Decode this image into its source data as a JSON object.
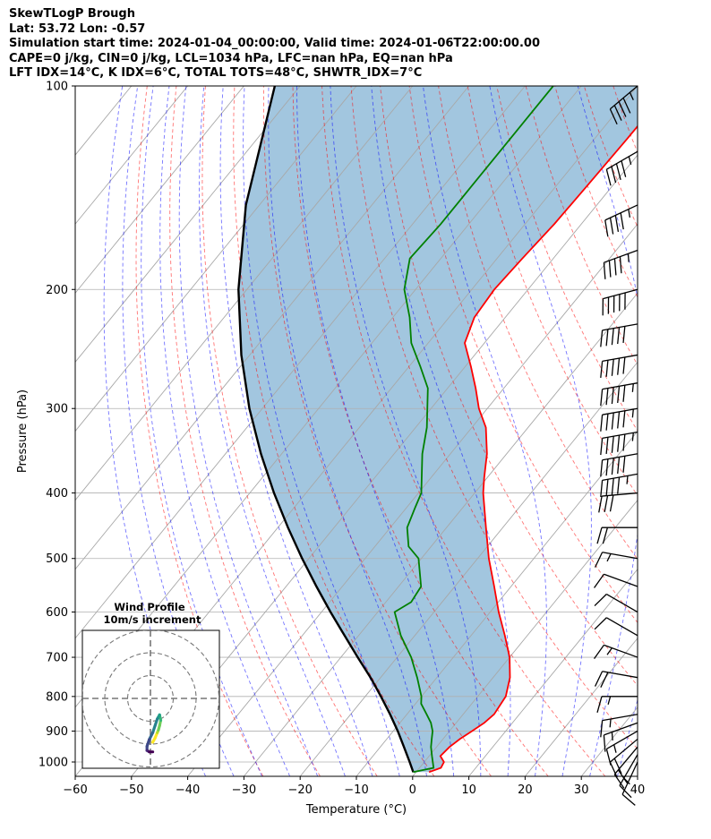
{
  "header": {
    "title": "SkewTLogP Brough",
    "location": "Lat: 53.72   Lon: -0.57",
    "times": "Simulation start time: 2024-01-04_00:00:00, Valid time: 2024-01-06T22:00:00.00",
    "params": "CAPE=0 j/kg, CIN=0 j/kg, LCL=1034 hPa, LFC=nan hPa, EQ=nan hPa",
    "indices": "LFT IDX=14$^\\circ$C, K IDX=6$^\\circ$C, TOTAL TOTS=48$^\\circ$C, SHWTR_IDX=7$^\\circ$C"
  },
  "chart_data": {
    "type": "line",
    "subtype": "skew-t log-p",
    "xlabel": "Temperature ($^\\circ$C)",
    "ylabel": "Pressure (hPa)",
    "xlim": [
      -60,
      40
    ],
    "ylim": [
      1050,
      100
    ],
    "yscale": "log",
    "xticks": [
      -60,
      -50,
      -40,
      -30,
      -20,
      -10,
      0,
      10,
      20,
      30,
      40
    ],
    "yticks": [
      1000,
      900,
      800,
      700,
      600,
      500,
      400,
      300,
      200,
      100
    ],
    "grid": true,
    "series": [
      {
        "color": "#ff0000",
        "pressure_hpa": [
          1035,
          1020,
          1000,
          980,
          950,
          925,
          900,
          875,
          850,
          800,
          750,
          700,
          650,
          600,
          550,
          500,
          450,
          400,
          380,
          350,
          320,
          300,
          280,
          260,
          240,
          220,
          200,
          180,
          160,
          140,
          120,
          100
        ],
        "temperature_c": [
          2.3,
          3.8,
          3.5,
          2,
          2.3,
          3,
          4,
          5,
          5.5,
          5,
          3,
          0,
          -4,
          -8.5,
          -13,
          -18,
          -23,
          -28.5,
          -30.5,
          -33.5,
          -37.5,
          -41.5,
          -45,
          -49,
          -53.5,
          -55.5,
          -56,
          -55.5,
          -54.8,
          -54.5,
          -54.2,
          -54
        ]
      },
      {
        "color": "#008000",
        "pressure_hpa": [
          1035,
          1020,
          1000,
          980,
          950,
          925,
          900,
          875,
          850,
          820,
          800,
          750,
          700,
          650,
          600,
          580,
          550,
          500,
          480,
          450,
          420,
          400,
          350,
          320,
          280,
          260,
          240,
          220,
          200,
          180,
          160,
          140,
          120,
          100
        ],
        "temperature_c": [
          -0.5,
          2.5,
          1.5,
          0.5,
          -1,
          -2,
          -3,
          -4.5,
          -6.5,
          -9,
          -10,
          -13.5,
          -17.5,
          -22.5,
          -27,
          -25.5,
          -26,
          -30.5,
          -34,
          -37,
          -38.5,
          -39.5,
          -45,
          -48,
          -53.5,
          -58,
          -63,
          -67,
          -72,
          -75.5,
          -75,
          -75,
          -75,
          -75
        ]
      },
      {
        "color": "#000000",
        "pressure_hpa": [
          1035,
          1000,
          950,
          900,
          850,
          800,
          750,
          700,
          650,
          600,
          550,
          500,
          450,
          400,
          350,
          300,
          250,
          200,
          150,
          100
        ],
        "temperature_c": [
          -0.5,
          -2.6,
          -5.8,
          -9.2,
          -13,
          -17.2,
          -21.8,
          -27,
          -32.5,
          -38.4,
          -44.6,
          -51.2,
          -58.2,
          -65.7,
          -73.7,
          -82.3,
          -91.5,
          -101.5,
          -112.4,
          -124.5
        ]
      }
    ],
    "shaded_area": {
      "color": "#a2c6df",
      "between": [
        "#ff0000",
        "#000000"
      ]
    },
    "wind_barbs": {
      "pressure_hpa": [
        100,
        125,
        150,
        175,
        200,
        225,
        250,
        275,
        300,
        325,
        350,
        375,
        400,
        450,
        500,
        550,
        600,
        650,
        700,
        750,
        800,
        850,
        875,
        900,
        925,
        950,
        975,
        1000
      ],
      "speed_kt": [
        45,
        45,
        45,
        45,
        50,
        50,
        50,
        55,
        55,
        55,
        50,
        45,
        30,
        20,
        15,
        10,
        10,
        10,
        15,
        20,
        15,
        15,
        15,
        15,
        20,
        20,
        15,
        10
      ],
      "direction_deg": [
        310,
        300,
        295,
        290,
        285,
        280,
        280,
        280,
        280,
        280,
        280,
        280,
        275,
        270,
        260,
        250,
        240,
        240,
        250,
        260,
        270,
        280,
        290,
        300,
        310,
        320,
        330,
        335
      ]
    },
    "inset": {
      "title": "Wind Profile",
      "subtitle": "10m/s increment",
      "rings_ms": [
        10,
        20,
        30
      ],
      "hodograph_u_ms": [
        1,
        2,
        3,
        3.5,
        4,
        4.5,
        4,
        3,
        2,
        1,
        -0.5,
        -1.5,
        -1.5,
        -0.5,
        1
      ],
      "hodograph_v_ms": [
        -32,
        -29,
        -25,
        -23,
        -20,
        -16,
        -12,
        -15,
        -20,
        -25,
        -30,
        -35,
        -38,
        -39,
        -39
      ]
    }
  }
}
